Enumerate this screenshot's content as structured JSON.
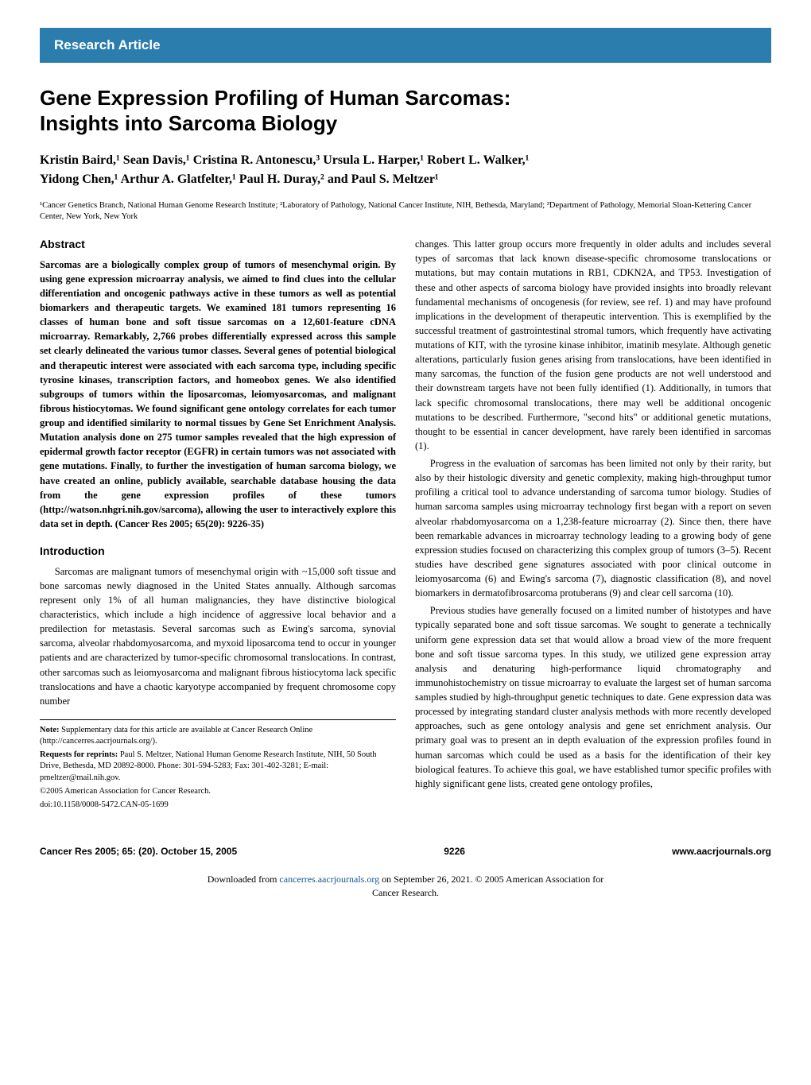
{
  "header_bar": "Research Article",
  "title_line1": "Gene Expression Profiling of Human Sarcomas:",
  "title_line2": "Insights into Sarcoma Biology",
  "authors_line1": "Kristin Baird,¹ Sean Davis,¹ Cristina R. Antonescu,³ Ursula L. Harper,¹ Robert L. Walker,¹",
  "authors_line2": "Yidong Chen,¹ Arthur A. Glatfelter,¹ Paul H. Duray,² and Paul S. Meltzer¹",
  "affiliations": "¹Cancer Genetics Branch, National Human Genome Research Institute; ²Laboratory of Pathology, National Cancer Institute, NIH, Bethesda, Maryland; ³Department of Pathology, Memorial Sloan-Kettering Cancer Center, New York, New York",
  "abstract_heading": "Abstract",
  "abstract": "Sarcomas are a biologically complex group of tumors of mesenchymal origin. By using gene expression microarray analysis, we aimed to find clues into the cellular differentiation and oncogenic pathways active in these tumors as well as potential biomarkers and therapeutic targets. We examined 181 tumors representing 16 classes of human bone and soft tissue sarcomas on a 12,601-feature cDNA microarray. Remarkably, 2,766 probes differentially expressed across this sample set clearly delineated the various tumor classes. Several genes of potential biological and therapeutic interest were associated with each sarcoma type, including specific tyrosine kinases, transcription factors, and homeobox genes. We also identified subgroups of tumors within the liposarcomas, leiomyosarcomas, and malignant fibrous histiocytomas. We found significant gene ontology correlates for each tumor group and identified similarity to normal tissues by Gene Set Enrichment Analysis. Mutation analysis done on 275 tumor samples revealed that the high expression of epidermal growth factor receptor (EGFR) in certain tumors was not associated with gene mutations. Finally, to further the investigation of human sarcoma biology, we have created an online, publicly available, searchable database housing the data from the gene expression profiles of these tumors (http://watson.nhgri.nih.gov/sarcoma), allowing the user to interactively explore this data set in depth. (Cancer Res 2005; 65(20): 9226-35)",
  "intro_heading": "Introduction",
  "intro_p1": "Sarcomas are malignant tumors of mesenchymal origin with ~15,000 soft tissue and bone sarcomas newly diagnosed in the United States annually. Although sarcomas represent only 1% of all human malignancies, they have distinctive biological characteristics, which include a high incidence of aggressive local behavior and a predilection for metastasis. Several sarcomas such as Ewing's sarcoma, synovial sarcoma, alveolar rhabdomyosarcoma, and myxoid liposarcoma tend to occur in younger patients and are characterized by tumor-specific chromosomal translocations. In contrast, other sarcomas such as leiomyosarcoma and malignant fibrous histiocytoma lack specific translocations and have a chaotic karyotype accompanied by frequent chromosome copy number",
  "right_p1": "changes. This latter group occurs more frequently in older adults and includes several types of sarcomas that lack known disease-specific chromosome translocations or mutations, but may contain mutations in RB1, CDKN2A, and TP53. Investigation of these and other aspects of sarcoma biology have provided insights into broadly relevant fundamental mechanisms of oncogenesis (for review, see ref. 1) and may have profound implications in the development of therapeutic intervention. This is exemplified by the successful treatment of gastrointestinal stromal tumors, which frequently have activating mutations of KIT, with the tyrosine kinase inhibitor, imatinib mesylate. Although genetic alterations, particularly fusion genes arising from translocations, have been identified in many sarcomas, the function of the fusion gene products are not well understood and their downstream targets have not been fully identified (1). Additionally, in tumors that lack specific chromosomal translocations, there may well be additional oncogenic mutations to be described. Furthermore, \"second hits\" or additional genetic mutations, thought to be essential in cancer development, have rarely been identified in sarcomas (1).",
  "right_p2": "Progress in the evaluation of sarcomas has been limited not only by their rarity, but also by their histologic diversity and genetic complexity, making high-throughput tumor profiling a critical tool to advance understanding of sarcoma tumor biology. Studies of human sarcoma samples using microarray technology first began with a report on seven alveolar rhabdomyosarcoma on a 1,238-feature microarray (2). Since then, there have been remarkable advances in microarray technology leading to a growing body of gene expression studies focused on characterizing this complex group of tumors (3–5). Recent studies have described gene signatures associated with poor clinical outcome in leiomyosarcoma (6) and Ewing's sarcoma (7), diagnostic classification (8), and novel biomarkers in dermatofibrosarcoma protuberans (9) and clear cell sarcoma (10).",
  "right_p3": "Previous studies have generally focused on a limited number of histotypes and have typically separated bone and soft tissue sarcomas. We sought to generate a technically uniform gene expression data set that would allow a broad view of the more frequent bone and soft tissue sarcoma types. In this study, we utilized gene expression array analysis and denaturing high-performance liquid chromatography and immunohistochemistry on tissue microarray to evaluate the largest set of human sarcoma samples studied by high-throughput genetic techniques to date. Gene expression data was processed by integrating standard cluster analysis methods with more recently developed approaches, such as gene ontology analysis and gene set enrichment analysis. Our primary goal was to present an in depth evaluation of the expression profiles found in human sarcomas which could be used as a basis for the identification of their key biological features. To achieve this goal, we have established tumor specific profiles with highly significant gene lists, created gene ontology profiles,",
  "note_label": "Note:",
  "note_text": " Supplementary data for this article are available at Cancer Research Online (http://cancerres.aacrjournals.org/).",
  "reprints_label": "Requests for reprints:",
  "reprints_text": " Paul S. Meltzer, National Human Genome Research Institute, NIH, 50 South Drive, Bethesda, MD 20892-8000. Phone: 301-594-5283; Fax: 301-402-3281; E-mail: pmeltzer@mail.nih.gov.",
  "copyright": "©2005 American Association for Cancer Research.",
  "doi": "doi:10.1158/0008-5472.CAN-05-1699",
  "footer_left": "Cancer Res 2005; 65: (20). October 15, 2005",
  "footer_center": "9226",
  "footer_right": "www.aacrjournals.org",
  "download_text1": "Downloaded from ",
  "download_link": "cancerres.aacrjournals.org",
  "download_text2": " on September 26, 2021. © 2005 American Association for",
  "download_text3": "Cancer Research.",
  "colors": {
    "header_bg": "#2a7dad",
    "header_text": "#ffffff",
    "body_text": "#000000",
    "link": "#1a5490",
    "bg": "#ffffff"
  }
}
